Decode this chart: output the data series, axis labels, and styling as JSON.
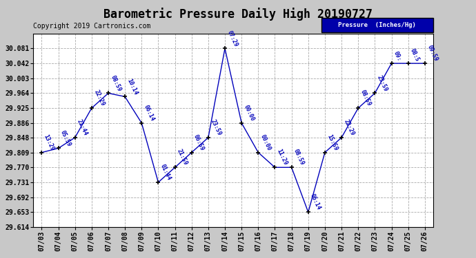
{
  "title": "Barometric Pressure Daily High 20190727",
  "copyright": "Copyright 2019 Cartronics.com",
  "legend_label": "Pressure  (Inches/Hg)",
  "background_color": "#c8c8c8",
  "plot_bg_color": "#ffffff",
  "line_color": "#0000bb",
  "marker_color": "#000000",
  "text_color": "#0000bb",
  "grid_color": "#aaaaaa",
  "dates": [
    "07/03",
    "07/04",
    "07/05",
    "07/06",
    "07/07",
    "07/08",
    "07/09",
    "07/10",
    "07/11",
    "07/12",
    "07/13",
    "07/14",
    "07/15",
    "07/16",
    "07/17",
    "07/18",
    "07/19",
    "07/20",
    "07/21",
    "07/22",
    "07/23",
    "07/24",
    "07/25",
    "07/26"
  ],
  "values": [
    29.809,
    29.82,
    29.848,
    29.925,
    29.964,
    29.955,
    29.886,
    29.731,
    29.77,
    29.809,
    29.848,
    30.081,
    29.886,
    29.809,
    29.77,
    29.77,
    29.653,
    29.809,
    29.848,
    29.925,
    29.964,
    30.042,
    30.042,
    30.042
  ],
  "annotations": [
    "13:29",
    "05:59",
    "21:44",
    "22:29",
    "08:59",
    "10:14",
    "06:14",
    "01:44",
    "21:59",
    "06:59",
    "23:59",
    "07:29",
    "00:00",
    "00:00",
    "11:29",
    "08:59",
    "06:14",
    "15:59",
    "22:29",
    "08:59",
    "23:59",
    "09:",
    "08:5",
    "09:59"
  ],
  "ylim_min": 29.614,
  "ylim_max": 30.12,
  "yticks": [
    29.614,
    29.653,
    29.692,
    29.731,
    29.77,
    29.809,
    29.848,
    29.886,
    29.925,
    29.964,
    30.003,
    30.042,
    30.081
  ],
  "title_fontsize": 12,
  "axis_fontsize": 7,
  "annotation_fontsize": 6,
  "copyright_fontsize": 7
}
